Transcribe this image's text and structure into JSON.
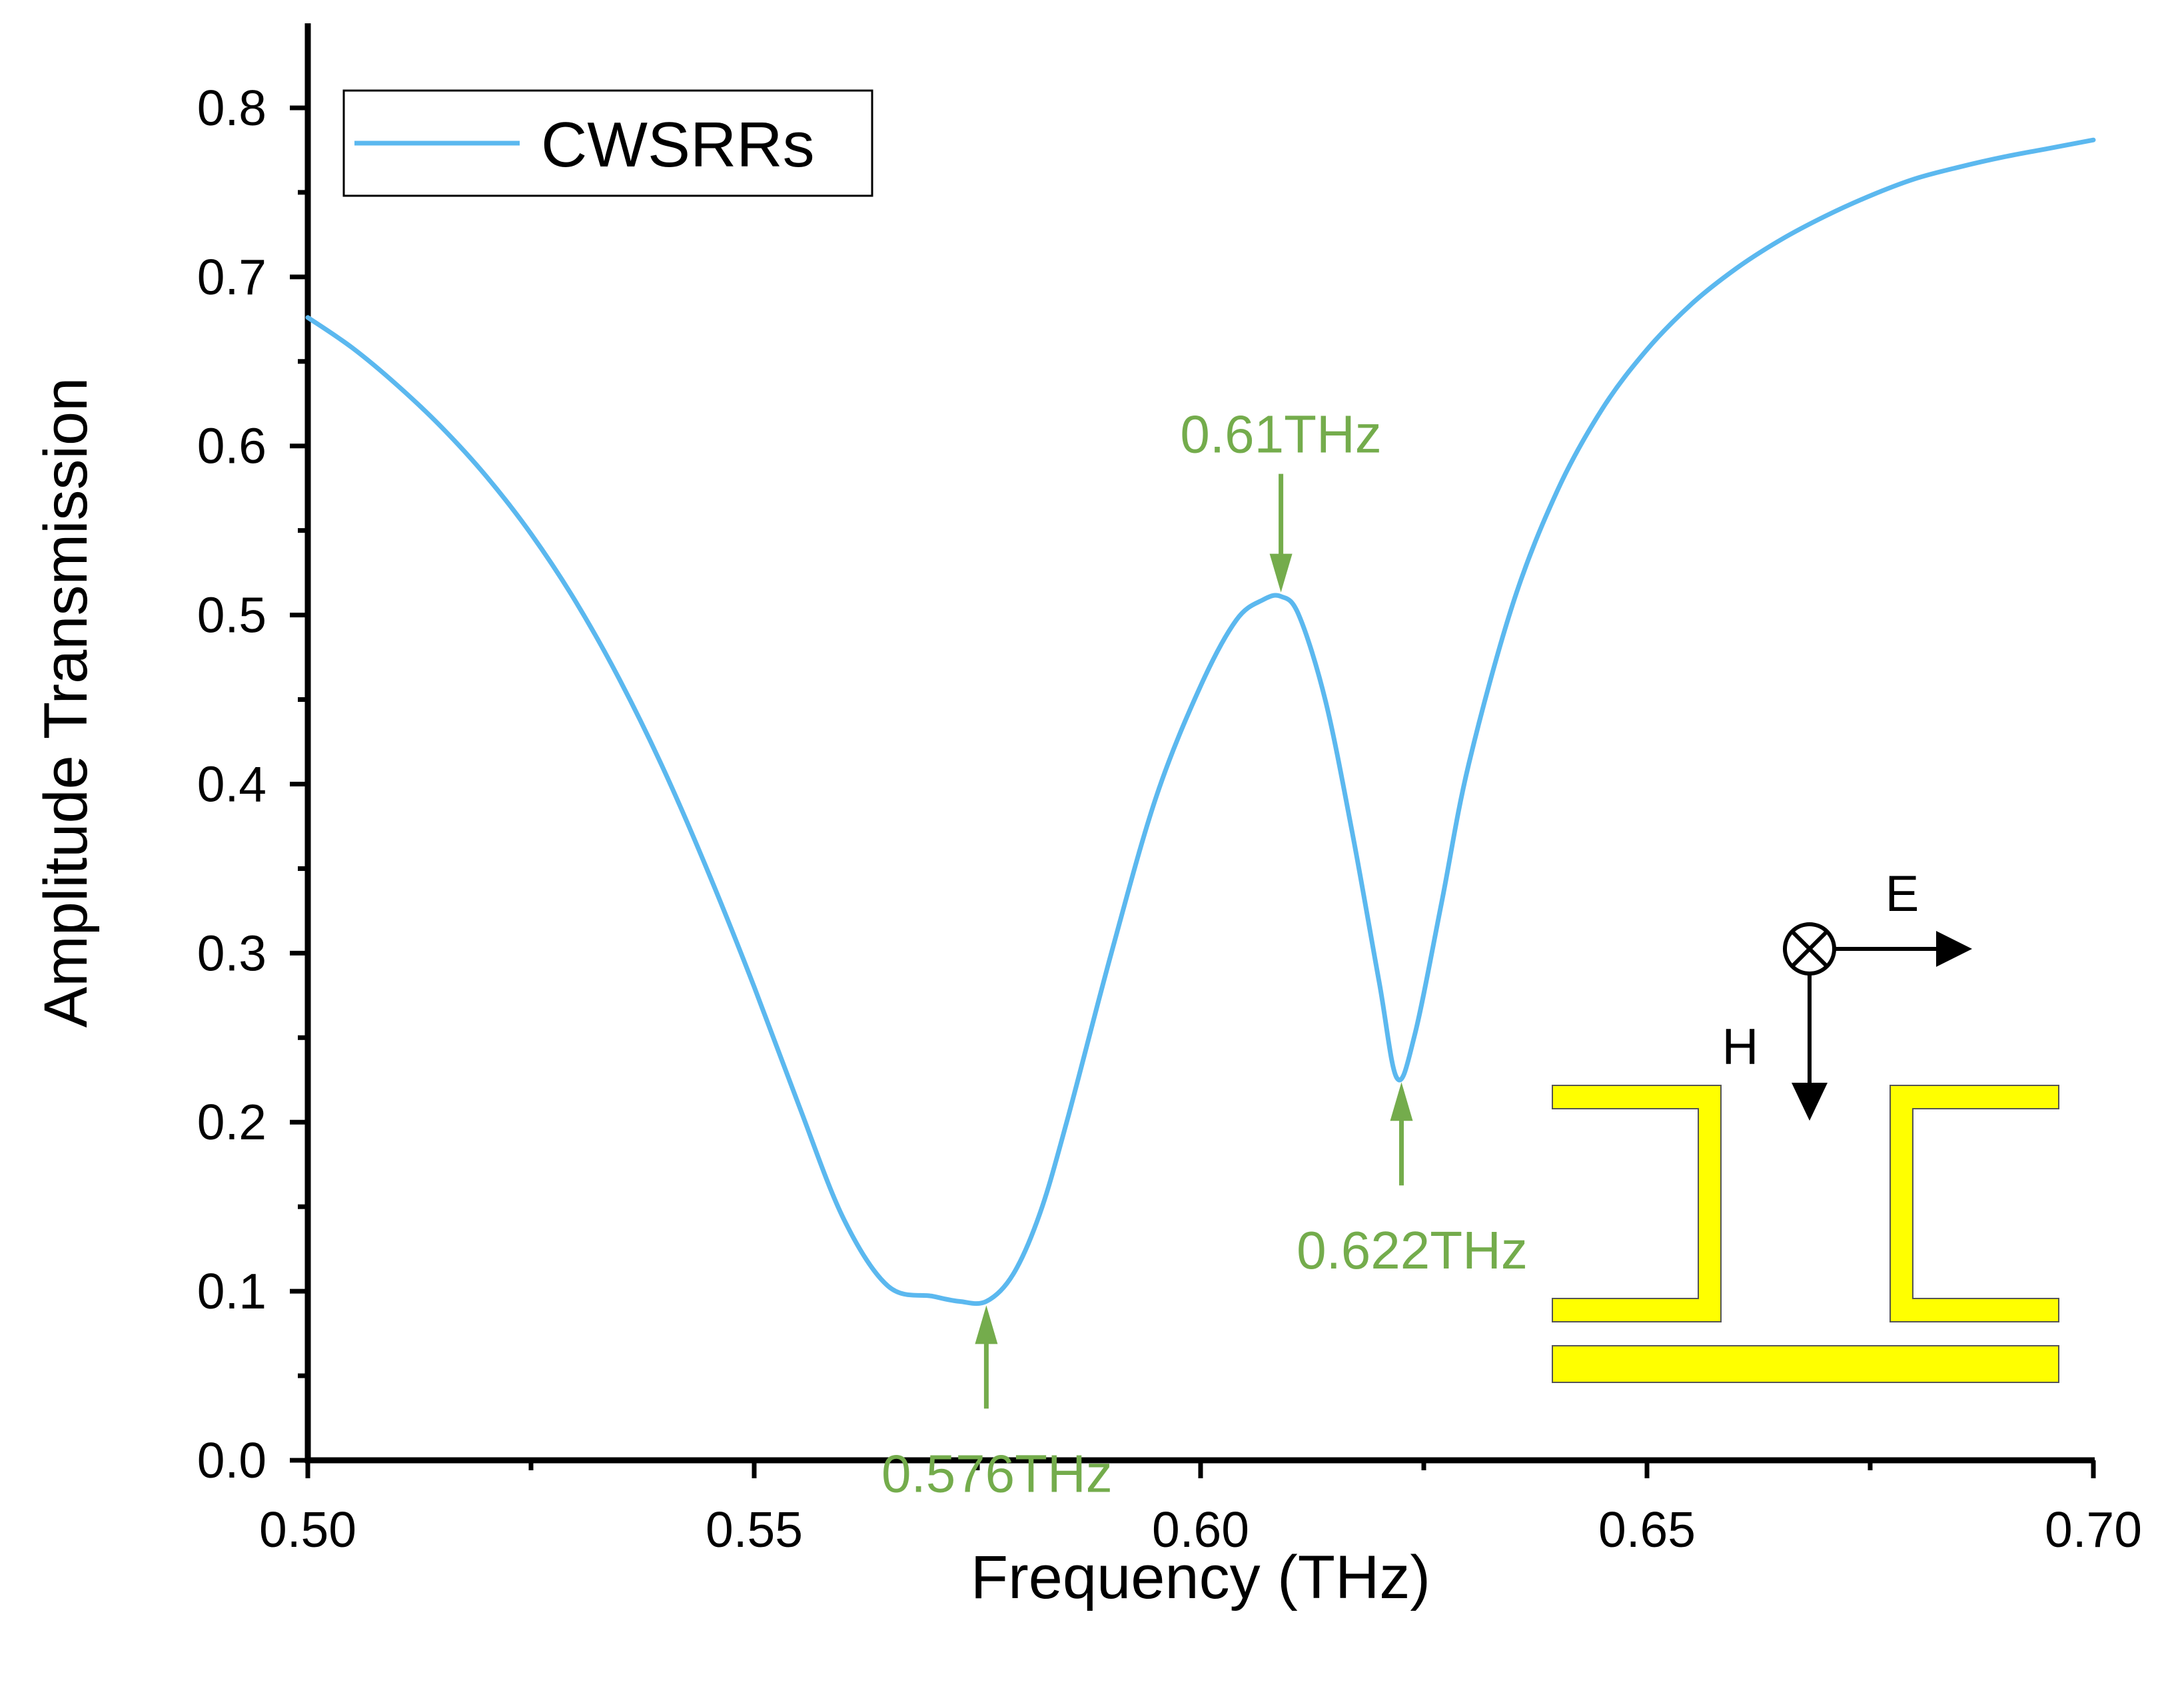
{
  "chart_data": {
    "type": "line",
    "xlabel": "Frequency (THz)",
    "ylabel": "Amplitude Transmission",
    "xlim": [
      0.5,
      0.7
    ],
    "ylim": [
      0.0,
      0.85
    ],
    "x_ticks": [
      0.5,
      0.55,
      0.6,
      0.65,
      0.7
    ],
    "x_tick_labels": [
      "0.50",
      "0.55",
      "0.60",
      "0.65",
      "0.70"
    ],
    "x_minor_ticks": [
      0.525,
      0.575,
      0.625,
      0.675
    ],
    "y_ticks": [
      0.0,
      0.1,
      0.2,
      0.3,
      0.4,
      0.5,
      0.6,
      0.7,
      0.8
    ],
    "y_tick_labels": [
      "0.0",
      "0.1",
      "0.2",
      "0.3",
      "0.4",
      "0.5",
      "0.6",
      "0.7",
      "0.8"
    ],
    "y_minor_ticks": [
      0.05,
      0.15,
      0.25,
      0.35,
      0.45,
      0.55,
      0.65,
      0.75
    ],
    "grid": false,
    "legend": {
      "position": "top-left",
      "entries": [
        "CWSRRs"
      ]
    },
    "series": [
      {
        "name": "CWSRRs",
        "color": "#5bb8ef",
        "x": [
          0.5,
          0.505,
          0.51,
          0.515,
          0.52,
          0.525,
          0.53,
          0.535,
          0.54,
          0.545,
          0.55,
          0.555,
          0.56,
          0.565,
          0.57,
          0.573,
          0.576,
          0.579,
          0.582,
          0.585,
          0.59,
          0.595,
          0.6,
          0.604,
          0.607,
          0.609,
          0.611,
          0.614,
          0.617,
          0.62,
          0.622,
          0.624,
          0.627,
          0.63,
          0.635,
          0.64,
          0.645,
          0.65,
          0.655,
          0.66,
          0.665,
          0.67,
          0.675,
          0.68,
          0.685,
          0.69,
          0.695,
          0.7
        ],
        "y": [
          0.676,
          0.658,
          0.636,
          0.611,
          0.582,
          0.548,
          0.508,
          0.461,
          0.407,
          0.346,
          0.28,
          0.21,
          0.143,
          0.103,
          0.097,
          0.094,
          0.094,
          0.11,
          0.146,
          0.2,
          0.3,
          0.392,
          0.458,
          0.497,
          0.509,
          0.511,
          0.5,
          0.449,
          0.371,
          0.283,
          0.226,
          0.252,
          0.33,
          0.411,
          0.507,
          0.574,
          0.622,
          0.657,
          0.684,
          0.705,
          0.722,
          0.736,
          0.748,
          0.758,
          0.765,
          0.771,
          0.776,
          0.781
        ]
      }
    ],
    "annotations": [
      {
        "label": "0.576THz",
        "x": 0.576,
        "y": 0.094,
        "direction": "up",
        "color": "#74ac4c"
      },
      {
        "label": "0.61THz",
        "x": 0.609,
        "y": 0.511,
        "direction": "down",
        "color": "#74ac4c"
      },
      {
        "label": "0.622THz",
        "x": 0.6225,
        "y": 0.226,
        "direction": "up",
        "color": "#74ac4c"
      }
    ]
  },
  "inset": {
    "e_label": "E",
    "h_label": "H",
    "structure_color": "#ffff00",
    "structure_stroke": "#555555"
  }
}
